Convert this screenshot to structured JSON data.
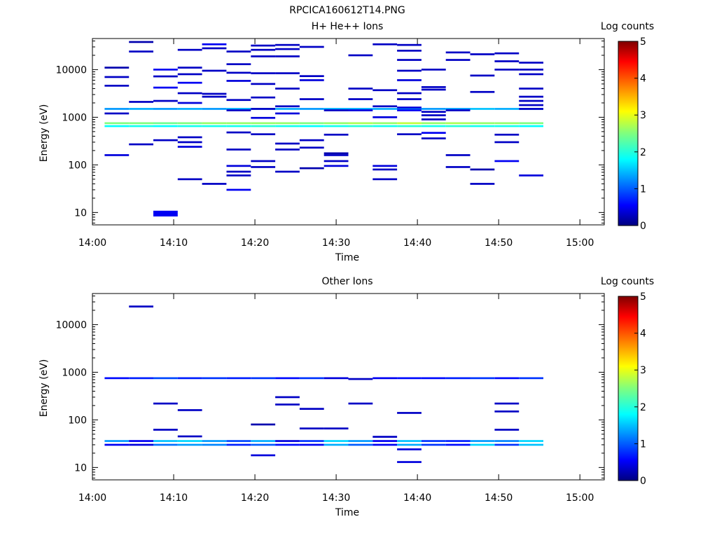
{
  "figure_title": "RPCICA160612T14.PNG",
  "chart_data": [
    {
      "type": "heatmap",
      "title": "H+ He++ Ions",
      "xlabel": "Time",
      "ylabel": "Energy (eV)",
      "x_ticks": [
        "14:00",
        "14:10",
        "14:20",
        "14:30",
        "14:40",
        "14:50",
        "15:00"
      ],
      "xlim": [
        "14:00",
        "15:03"
      ],
      "y_ticks": [
        10,
        100,
        1000,
        10000
      ],
      "ylim": [
        5.5,
        45000
      ],
      "y_scale": "log",
      "colorbar": {
        "label": "Log counts",
        "ticks": [
          0,
          1,
          2,
          3,
          4,
          5
        ],
        "range": [
          0,
          5
        ],
        "colormap": "jet"
      },
      "time_bins": [
        "14:03",
        "14:06",
        "14:09",
        "14:12",
        "14:15",
        "14:18",
        "14:21",
        "14:24",
        "14:27",
        "14:30",
        "14:33",
        "14:36",
        "14:39",
        "14:42",
        "14:45",
        "14:48",
        "14:51",
        "14:54",
        "14:57"
      ],
      "cells": [
        [
          0,
          1500,
          1.3
        ],
        [
          0,
          750,
          2.5
        ],
        [
          0,
          650,
          1.8
        ],
        [
          0,
          160,
          0.4
        ],
        [
          0,
          1200,
          0.3
        ],
        [
          0,
          4600,
          0.3
        ],
        [
          0,
          7000,
          0.3
        ],
        [
          0,
          11000,
          0.2
        ],
        [
          1,
          1500,
          1.4
        ],
        [
          1,
          750,
          2.5
        ],
        [
          1,
          650,
          1.9
        ],
        [
          1,
          270,
          0.3
        ],
        [
          1,
          2100,
          0.3
        ],
        [
          1,
          24000,
          0.3
        ],
        [
          1,
          38000,
          0.2
        ],
        [
          2,
          1500,
          1.3
        ],
        [
          2,
          750,
          2.4
        ],
        [
          2,
          650,
          1.8
        ],
        [
          2,
          9.5,
          0.5
        ],
        [
          2,
          330,
          0.3
        ],
        [
          2,
          2200,
          0.3
        ],
        [
          2,
          4200,
          0.5
        ],
        [
          2,
          7200,
          0.3
        ],
        [
          2,
          10000,
          0.5
        ],
        [
          3,
          1500,
          1.4
        ],
        [
          3,
          750,
          2.5
        ],
        [
          3,
          650,
          1.9
        ],
        [
          3,
          50,
          0.3
        ],
        [
          3,
          240,
          0.4
        ],
        [
          3,
          300,
          0.3
        ],
        [
          3,
          380,
          0.3
        ],
        [
          3,
          2000,
          0.4
        ],
        [
          3,
          3200,
          0.3
        ],
        [
          3,
          5300,
          0.5
        ],
        [
          3,
          8000,
          0.3
        ],
        [
          3,
          11000,
          0.3
        ],
        [
          3,
          26000,
          0.3
        ],
        [
          4,
          1500,
          1.3
        ],
        [
          4,
          750,
          2.6
        ],
        [
          4,
          650,
          1.9
        ],
        [
          4,
          40,
          0.3
        ],
        [
          4,
          2700,
          0.3
        ],
        [
          4,
          3100,
          0.3
        ],
        [
          4,
          9500,
          0.3
        ],
        [
          4,
          28000,
          0.3
        ],
        [
          4,
          34000,
          0.5
        ],
        [
          5,
          1500,
          1.4
        ],
        [
          5,
          750,
          2.6
        ],
        [
          5,
          650,
          1.9
        ],
        [
          5,
          30,
          0.5
        ],
        [
          5,
          60,
          0.3
        ],
        [
          5,
          72,
          0.3
        ],
        [
          5,
          95,
          0.4
        ],
        [
          5,
          210,
          0.3
        ],
        [
          5,
          480,
          0.3
        ],
        [
          5,
          1400,
          0.3
        ],
        [
          5,
          2300,
          0.3
        ],
        [
          5,
          5800,
          0.4
        ],
        [
          5,
          8600,
          0.3
        ],
        [
          5,
          13000,
          0.3
        ],
        [
          5,
          24000,
          0.3
        ],
        [
          6,
          1500,
          1.5
        ],
        [
          6,
          750,
          2.6
        ],
        [
          6,
          650,
          2.0
        ],
        [
          6,
          90,
          0.3
        ],
        [
          6,
          120,
          0.3
        ],
        [
          6,
          440,
          0.3
        ],
        [
          6,
          970,
          0.4
        ],
        [
          6,
          1500,
          0.3
        ],
        [
          6,
          2600,
          0.3
        ],
        [
          6,
          5000,
          0.3
        ],
        [
          6,
          8400,
          0.3
        ],
        [
          6,
          19000,
          0.3
        ],
        [
          6,
          26000,
          0.3
        ],
        [
          6,
          32000,
          0.3
        ],
        [
          7,
          1500,
          1.4
        ],
        [
          7,
          750,
          2.6
        ],
        [
          7,
          650,
          1.9
        ],
        [
          7,
          72,
          0.3
        ],
        [
          7,
          210,
          0.3
        ],
        [
          7,
          280,
          0.3
        ],
        [
          7,
          1200,
          0.4
        ],
        [
          7,
          1700,
          0.3
        ],
        [
          7,
          4000,
          0.3
        ],
        [
          7,
          8400,
          0.3
        ],
        [
          7,
          19000,
          0.3
        ],
        [
          7,
          27000,
          0.3
        ],
        [
          7,
          33000,
          0.3
        ],
        [
          8,
          1500,
          1.3
        ],
        [
          8,
          750,
          2.5
        ],
        [
          8,
          650,
          1.8
        ],
        [
          8,
          85,
          0.2
        ],
        [
          8,
          230,
          0.3
        ],
        [
          8,
          330,
          0.3
        ],
        [
          8,
          2400,
          0.3
        ],
        [
          8,
          6000,
          0.4
        ],
        [
          8,
          7300,
          0.3
        ],
        [
          8,
          30000,
          0.3
        ],
        [
          9,
          1500,
          1.4
        ],
        [
          9,
          750,
          2.6
        ],
        [
          9,
          650,
          1.9
        ],
        [
          9,
          95,
          0.4
        ],
        [
          9,
          120,
          0.3
        ],
        [
          9,
          160,
          0.3
        ],
        [
          9,
          175,
          0.2
        ],
        [
          9,
          430,
          0.3
        ],
        [
          9,
          1400,
          0.3
        ],
        [
          10,
          1500,
          1.4
        ],
        [
          10,
          750,
          2.7
        ],
        [
          10,
          650,
          2.0
        ],
        [
          10,
          1400,
          0.4
        ],
        [
          10,
          2400,
          0.3
        ],
        [
          10,
          4000,
          0.3
        ],
        [
          10,
          20000,
          0.3
        ],
        [
          11,
          1500,
          1.4
        ],
        [
          11,
          750,
          2.6
        ],
        [
          11,
          650,
          1.9
        ],
        [
          11,
          50,
          0.3
        ],
        [
          11,
          80,
          0.3
        ],
        [
          11,
          95,
          0.4
        ],
        [
          11,
          1000,
          0.4
        ],
        [
          11,
          1700,
          0.3
        ],
        [
          11,
          3700,
          0.3
        ],
        [
          11,
          34000,
          0.3
        ],
        [
          12,
          1500,
          1.3
        ],
        [
          12,
          750,
          2.8
        ],
        [
          12,
          650,
          2.0
        ],
        [
          12,
          440,
          0.3
        ],
        [
          12,
          1400,
          0.5
        ],
        [
          12,
          1600,
          0.4
        ],
        [
          12,
          2400,
          0.3
        ],
        [
          12,
          3200,
          0.3
        ],
        [
          12,
          6000,
          0.4
        ],
        [
          12,
          9500,
          0.3
        ],
        [
          12,
          16000,
          0.3
        ],
        [
          12,
          25000,
          0.3
        ],
        [
          12,
          33000,
          0.3
        ],
        [
          13,
          1500,
          1.3
        ],
        [
          13,
          750,
          2.6
        ],
        [
          13,
          650,
          1.9
        ],
        [
          13,
          360,
          0.3
        ],
        [
          13,
          470,
          0.5
        ],
        [
          13,
          900,
          0.3
        ],
        [
          13,
          1100,
          0.3
        ],
        [
          13,
          1300,
          0.3
        ],
        [
          13,
          3800,
          0.3
        ],
        [
          13,
          4300,
          0.3
        ],
        [
          13,
          10000,
          0.3
        ],
        [
          14,
          1500,
          1.3
        ],
        [
          14,
          750,
          2.7
        ],
        [
          14,
          650,
          2.0
        ],
        [
          14,
          90,
          0.3
        ],
        [
          14,
          160,
          0.3
        ],
        [
          14,
          1400,
          0.3
        ],
        [
          14,
          16000,
          0.3
        ],
        [
          14,
          23000,
          0.3
        ],
        [
          15,
          1500,
          1.5
        ],
        [
          15,
          750,
          2.6
        ],
        [
          15,
          650,
          1.9
        ],
        [
          15,
          40,
          0.3
        ],
        [
          15,
          80,
          0.2
        ],
        [
          15,
          3400,
          0.3
        ],
        [
          15,
          7500,
          0.3
        ],
        [
          15,
          21000,
          0.3
        ],
        [
          16,
          1500,
          1.4
        ],
        [
          16,
          750,
          2.6
        ],
        [
          16,
          650,
          1.9
        ],
        [
          16,
          120,
          0.5
        ],
        [
          16,
          300,
          0.3
        ],
        [
          16,
          430,
          0.3
        ],
        [
          16,
          10000,
          0.3
        ],
        [
          16,
          15000,
          0.3
        ],
        [
          16,
          22000,
          0.3
        ],
        [
          17,
          1500,
          1.3
        ],
        [
          17,
          750,
          2.5
        ],
        [
          17,
          650,
          1.8
        ],
        [
          17,
          60,
          0.4
        ],
        [
          17,
          1500,
          0.3
        ],
        [
          17,
          1800,
          0.3
        ],
        [
          17,
          2200,
          0.3
        ],
        [
          17,
          2700,
          0.3
        ],
        [
          17,
          4000,
          0.3
        ],
        [
          17,
          8000,
          0.3
        ],
        [
          17,
          10000,
          0.3
        ],
        [
          17,
          14000,
          0.3
        ]
      ]
    },
    {
      "type": "heatmap",
      "title": "Other Ions",
      "xlabel": "Time",
      "ylabel": "Energy (eV)",
      "x_ticks": [
        "14:00",
        "14:10",
        "14:20",
        "14:30",
        "14:40",
        "14:50",
        "15:00"
      ],
      "xlim": [
        "14:00",
        "15:03"
      ],
      "y_ticks": [
        10,
        100,
        1000,
        10000
      ],
      "ylim": [
        5.5,
        45000
      ],
      "y_scale": "log",
      "colorbar": {
        "label": "Log counts",
        "ticks": [
          0,
          1,
          2,
          3,
          4,
          5
        ],
        "range": [
          0,
          5
        ],
        "colormap": "jet"
      },
      "time_bins": [
        "14:03",
        "14:06",
        "14:09",
        "14:12",
        "14:15",
        "14:18",
        "14:21",
        "14:24",
        "14:27",
        "14:30",
        "14:33",
        "14:36",
        "14:39",
        "14:42",
        "14:45",
        "14:48",
        "14:51",
        "14:54",
        "14:57"
      ],
      "cells": [
        [
          0,
          750,
          0.6
        ],
        [
          0,
          36,
          1.3
        ],
        [
          0,
          30,
          0.5
        ],
        [
          1,
          750,
          0.7
        ],
        [
          1,
          36,
          0.5
        ],
        [
          1,
          30,
          0.4
        ],
        [
          1,
          24000,
          0.3
        ],
        [
          2,
          750,
          0.9
        ],
        [
          2,
          36,
          1.5
        ],
        [
          2,
          30,
          1.1
        ],
        [
          2,
          62,
          0.3
        ],
        [
          2,
          220,
          0.3
        ],
        [
          3,
          750,
          0.7
        ],
        [
          3,
          36,
          1.6
        ],
        [
          3,
          30,
          1.3
        ],
        [
          3,
          45,
          0.3
        ],
        [
          3,
          160,
          0.3
        ],
        [
          4,
          750,
          0.8
        ],
        [
          4,
          36,
          1.3
        ],
        [
          4,
          30,
          1.2
        ],
        [
          5,
          750,
          0.7
        ],
        [
          5,
          36,
          0.9
        ],
        [
          5,
          30,
          0.7
        ],
        [
          6,
          750,
          0.8
        ],
        [
          6,
          36,
          1.4
        ],
        [
          6,
          30,
          1.0
        ],
        [
          6,
          18,
          0.4
        ],
        [
          6,
          80,
          0.2
        ],
        [
          7,
          750,
          0.6
        ],
        [
          7,
          36,
          0.4
        ],
        [
          7,
          30,
          0.6
        ],
        [
          7,
          210,
          0.3
        ],
        [
          7,
          300,
          0.3
        ],
        [
          8,
          750,
          0.8
        ],
        [
          8,
          36,
          0.8
        ],
        [
          8,
          30,
          0.5
        ],
        [
          8,
          66,
          0.3
        ],
        [
          8,
          170,
          0.3
        ],
        [
          9,
          750,
          0.4
        ],
        [
          9,
          36,
          1.6
        ],
        [
          9,
          30,
          1.4
        ],
        [
          9,
          66,
          0.3
        ],
        [
          10,
          720,
          0.3
        ],
        [
          10,
          36,
          1.3
        ],
        [
          10,
          30,
          1.0
        ],
        [
          10,
          220,
          0.3
        ],
        [
          11,
          750,
          0.5
        ],
        [
          11,
          36,
          0.5
        ],
        [
          11,
          30,
          0.5
        ],
        [
          11,
          44,
          0.3
        ],
        [
          12,
          750,
          0.6
        ],
        [
          12,
          36,
          1.5
        ],
        [
          12,
          30,
          1.4
        ],
        [
          12,
          24,
          0.4
        ],
        [
          12,
          13,
          0.4
        ],
        [
          12,
          140,
          0.3
        ],
        [
          13,
          750,
          0.6
        ],
        [
          13,
          36,
          0.8
        ],
        [
          13,
          30,
          0.8
        ],
        [
          14,
          750,
          0.7
        ],
        [
          14,
          36,
          0.7
        ],
        [
          14,
          30,
          0.6
        ],
        [
          15,
          750,
          0.8
        ],
        [
          15,
          36,
          1.3
        ],
        [
          15,
          30,
          1.6
        ],
        [
          16,
          750,
          0.6
        ],
        [
          16,
          36,
          1.2
        ],
        [
          16,
          30,
          0.8
        ],
        [
          16,
          62,
          0.3
        ],
        [
          16,
          150,
          0.3
        ],
        [
          16,
          220,
          0.3
        ],
        [
          17,
          750,
          0.8
        ],
        [
          17,
          36,
          1.6
        ],
        [
          17,
          30,
          1.5
        ]
      ]
    }
  ]
}
